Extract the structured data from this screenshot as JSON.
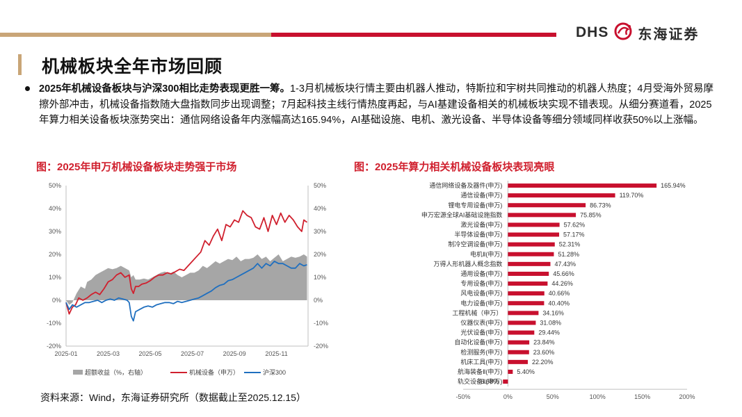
{
  "header": {
    "logo_en": "DHS",
    "logo_cn": "东海证券",
    "page_title": "机械板块全年市场回顾"
  },
  "body": {
    "bold_lead": "2025年机械设备板块与沪深300相比走势表现更胜一筹。",
    "text": "1-3月机械板块行情主要由机器人推动，特斯拉和宇树共同推动的机器人热度；4月受海外贸易摩擦外部冲击，机械设备指数随大盘指数同步出现调整；7月起科技主线行情热度再起，与AI基建设备相关的机械板块实现不错表现。从细分赛道看，2025年算力相关设备板块涨势突出：通信网络设备年内涨幅高达165.94%，AI基础设施、电机、激光设备、半导体设备等细分领域同样收获50%以上涨幅。"
  },
  "figures": {
    "left_title": "图：2025年申万机械设备板块走势强于市场",
    "right_title": "图：2025年算力相关机械设备板块表现亮眼"
  },
  "source": "资料来源：Wind，东海证券研究所（数据截止至2025.12.15）",
  "colors": {
    "red": "#d0202e",
    "blue": "#1f6fbf",
    "gray": "#a6a6a6",
    "gold": "#c9a577",
    "bar_red": "#c8102e"
  },
  "chart_data": [
    {
      "type": "line",
      "title": "图：2025年申万机械设备板块走势强于市场",
      "xlabel": "",
      "ylabel": "",
      "ylim": [
        -20,
        50
      ],
      "y_ticks": [
        "-20%",
        "-10%",
        "0%",
        "10%",
        "20%",
        "30%",
        "40%",
        "50%"
      ],
      "y2_ticks": [
        "-20%",
        "-10%",
        "0%",
        "10%",
        "20%",
        "30%",
        "40%",
        "50%"
      ],
      "x_ticks": [
        "2025-01",
        "2025-03",
        "2025-05",
        "2025-07",
        "2025-09",
        "2025-11"
      ],
      "x_tick_pos": [
        0,
        2,
        4,
        6,
        8,
        10
      ],
      "x_range": [
        0,
        11.5
      ],
      "grid": false,
      "legend_position": "bottom",
      "series": [
        {
          "name": "超额收益（%，右轴）",
          "kind": "area",
          "x": [
            0,
            0.15,
            0.3,
            0.5,
            0.7,
            0.9,
            1.0,
            1.2,
            1.4,
            1.6,
            1.8,
            2.0,
            2.2,
            2.4,
            2.6,
            2.8,
            3.0,
            3.1,
            3.2,
            3.3,
            3.5,
            3.7,
            3.9,
            4.1,
            4.3,
            4.5,
            4.7,
            4.9,
            5.1,
            5.3,
            5.5,
            5.7,
            5.9,
            6.1,
            6.3,
            6.5,
            6.7,
            6.9,
            7.1,
            7.3,
            7.5,
            7.7,
            7.9,
            8.1,
            8.3,
            8.5,
            8.7,
            8.9,
            9.1,
            9.3,
            9.5,
            9.7,
            9.9,
            10.1,
            10.3,
            10.5,
            10.7,
            10.9,
            11.1,
            11.3,
            11.45
          ],
          "values": [
            0,
            -2,
            -1,
            3,
            6,
            5,
            8,
            9,
            11,
            12,
            13,
            14,
            13.5,
            14,
            15,
            14,
            13,
            10,
            11,
            9,
            9,
            9.5,
            9,
            10,
            11,
            12,
            12.5,
            11.5,
            12.5,
            11,
            10,
            11,
            12,
            12,
            13,
            15,
            14,
            15.5,
            17,
            16,
            17,
            18,
            17.5,
            19,
            17,
            18,
            18,
            18.5,
            20,
            18,
            19,
            17,
            18.5,
            20,
            17,
            18,
            19,
            18.5,
            19,
            20,
            19
          ]
        },
        {
          "name": "机械设备（申万）",
          "kind": "line",
          "color": "#d0202e",
          "x": [
            0,
            0.15,
            0.3,
            0.45,
            0.6,
            0.8,
            1.0,
            1.2,
            1.4,
            1.6,
            1.8,
            2.0,
            2.2,
            2.4,
            2.6,
            2.8,
            3.0,
            3.1,
            3.2,
            3.3,
            3.45,
            3.6,
            3.8,
            4.0,
            4.2,
            4.4,
            4.6,
            4.8,
            5.0,
            5.2,
            5.4,
            5.6,
            5.8,
            6.0,
            6.2,
            6.4,
            6.6,
            6.8,
            7.0,
            7.2,
            7.4,
            7.6,
            7.8,
            8.0,
            8.2,
            8.4,
            8.6,
            8.8,
            9.0,
            9.2,
            9.4,
            9.6,
            9.8,
            10.0,
            10.2,
            10.4,
            10.6,
            10.8,
            11.0,
            11.2,
            11.3,
            11.45
          ],
          "values": [
            -1,
            -6,
            -3,
            -2,
            1,
            0,
            1,
            2.5,
            3.5,
            2.5,
            5,
            8,
            9,
            11,
            12,
            10,
            11,
            5,
            3,
            6,
            6,
            7,
            7.5,
            8.5,
            10,
            11,
            11,
            12,
            11.5,
            12.5,
            13.5,
            13,
            15,
            17,
            19,
            21,
            26,
            24,
            28,
            31,
            26,
            33,
            32,
            35,
            34,
            39,
            37,
            36,
            32,
            31,
            36,
            30,
            37,
            33,
            38,
            34,
            37,
            35,
            32,
            30,
            35,
            34
          ]
        },
        {
          "name": "沪深300",
          "kind": "line",
          "color": "#1f6fbf",
          "x": [
            0,
            0.15,
            0.3,
            0.5,
            0.7,
            0.9,
            1.1,
            1.3,
            1.5,
            1.7,
            1.9,
            2.1,
            2.3,
            2.5,
            2.7,
            2.9,
            3.0,
            3.1,
            3.2,
            3.3,
            3.5,
            3.7,
            3.9,
            4.1,
            4.3,
            4.5,
            4.7,
            4.9,
            5.1,
            5.3,
            5.5,
            5.7,
            5.9,
            6.1,
            6.3,
            6.5,
            6.7,
            6.9,
            7.1,
            7.3,
            7.5,
            7.7,
            7.9,
            8.1,
            8.3,
            8.5,
            8.7,
            8.9,
            9.1,
            9.3,
            9.5,
            9.7,
            9.9,
            10.1,
            10.3,
            10.5,
            10.7,
            10.9,
            11.1,
            11.3,
            11.45
          ],
          "values": [
            -1,
            -4,
            -2,
            -3,
            -2,
            -1,
            -1,
            -0.5,
            0,
            -1,
            0,
            0.5,
            0,
            1,
            0.5,
            0,
            -1,
            -7,
            -9,
            -5,
            -4,
            -3,
            -2.5,
            -3,
            -2,
            -1.5,
            -1,
            -1,
            -1.5,
            -0.5,
            -1,
            -0.5,
            0,
            0.5,
            1,
            2,
            3,
            4,
            5.5,
            6.5,
            7,
            8.5,
            9,
            10,
            11,
            12,
            13,
            14,
            16,
            14,
            16,
            15,
            17,
            16,
            16,
            15,
            14,
            14,
            16,
            15,
            15.5
          ]
        }
      ]
    },
    {
      "type": "bar",
      "orientation": "horizontal",
      "title": "图：2025年算力相关机械设备板块表现亮眼",
      "xlabel": "",
      "ylabel": "",
      "xlim": [
        -50,
        200
      ],
      "x_ticks": [
        "-50%",
        "0%",
        "50%",
        "100%",
        "150%",
        "200%"
      ],
      "grid": false,
      "categories": [
        "通信网络设备及器件(申万)",
        "通信设备(申万)",
        "锂电专用设备(申万)",
        "申万宏源全球AI基础设施指数",
        "激光设备(申万)",
        "半导体设备(申万)",
        "制冷空调设备(申万)",
        "电机Ⅱ(申万)",
        "万得人形机器人概念指数",
        "通用设备(申万)",
        "专用设备(申万)",
        "风电设备(申万)",
        "电力设备(申万)",
        "工程机械（申万）",
        "仪器仪表(申万)",
        "光伏设备(申万)",
        "自动化设备(申万)",
        "检测服务(申万)",
        "机床工具(申万)",
        "航海装备Ⅱ(申万)",
        "轨交设备Ⅱ(申万)"
      ],
      "values": [
        165.94,
        119.7,
        86.73,
        75.85,
        57.62,
        57.17,
        52.31,
        51.28,
        47.43,
        45.66,
        44.26,
        40.66,
        40.4,
        34.16,
        31.08,
        29.44,
        23.84,
        23.6,
        22.2,
        5.4,
        -5.58
      ],
      "labels": [
        "165.94%",
        "119.70%",
        "86.73%",
        "75.85%",
        "57.62%",
        "57.17%",
        "52.31%",
        "51.28%",
        "47.43%",
        "45.66%",
        "44.26%",
        "40.66%",
        "40.40%",
        "34.16%",
        "31.08%",
        "29.44%",
        "23.84%",
        "23.60%",
        "22.20%",
        "5.40%",
        "-5.58%"
      ]
    }
  ]
}
